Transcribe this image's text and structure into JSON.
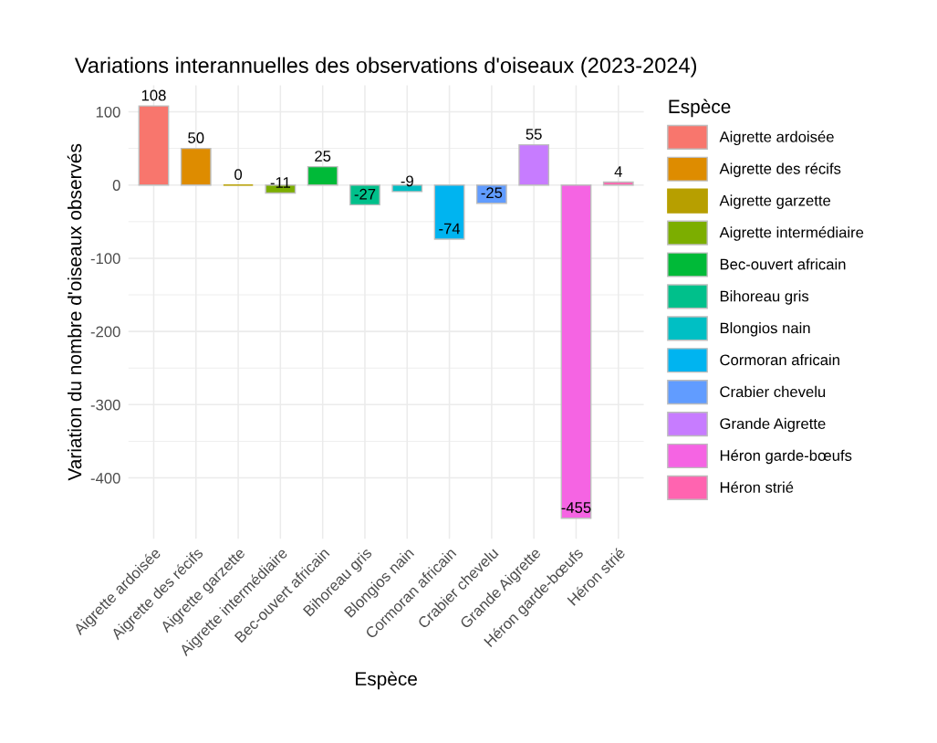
{
  "chart_data": {
    "type": "bar",
    "title": "Variations interannuelles des observations d'oiseaux (2023-2024)",
    "xlabel": "Espèce",
    "ylabel": "Variation du nombre d'oiseaux observés",
    "legend_title": "Espèce",
    "categories": [
      "Aigrette ardoisée",
      "Aigrette des récifs",
      "Aigrette garzette",
      "Aigrette intermédiaire",
      "Bec-ouvert africain",
      "Bihoreau gris",
      "Blongios nain",
      "Cormoran africain",
      "Crabier chevelu",
      "Grande Aigrette",
      "Héron garde-bœufs",
      "Héron strié"
    ],
    "series": [
      {
        "name": "Aigrette ardoisée",
        "color": "#f8766d",
        "values": [
          108,
          null,
          null,
          null,
          null,
          null,
          null,
          null,
          null,
          null,
          null,
          null
        ]
      },
      {
        "name": "Aigrette des récifs",
        "color": "#de8c00",
        "values": [
          null,
          50,
          null,
          null,
          null,
          null,
          null,
          null,
          null,
          null,
          null,
          null
        ]
      },
      {
        "name": "Aigrette garzette",
        "color": "#b79f00",
        "values": [
          null,
          null,
          0,
          null,
          null,
          null,
          null,
          null,
          null,
          null,
          null,
          null
        ]
      },
      {
        "name": "Aigrette intermédiaire",
        "color": "#7cae00",
        "values": [
          null,
          null,
          null,
          -11,
          null,
          null,
          null,
          null,
          null,
          null,
          null,
          null
        ]
      },
      {
        "name": "Bec-ouvert africain",
        "color": "#00ba38",
        "values": [
          null,
          null,
          null,
          null,
          25,
          null,
          null,
          null,
          null,
          null,
          null,
          null
        ]
      },
      {
        "name": "Bihoreau gris",
        "color": "#00c08b",
        "values": [
          null,
          null,
          null,
          null,
          null,
          -27,
          null,
          null,
          null,
          null,
          null,
          null
        ]
      },
      {
        "name": "Blongios nain",
        "color": "#00bfc4",
        "values": [
          null,
          null,
          null,
          null,
          null,
          null,
          -9,
          null,
          null,
          null,
          null,
          null
        ]
      },
      {
        "name": "Cormoran africain",
        "color": "#00b4f0",
        "values": [
          null,
          null,
          null,
          null,
          null,
          null,
          null,
          -74,
          null,
          null,
          null,
          null
        ]
      },
      {
        "name": "Crabier chevelu",
        "color": "#619cff",
        "values": [
          null,
          null,
          null,
          null,
          null,
          null,
          null,
          null,
          -25,
          null,
          null,
          null
        ]
      },
      {
        "name": "Grande Aigrette",
        "color": "#c77cff",
        "values": [
          null,
          null,
          null,
          null,
          null,
          null,
          null,
          null,
          null,
          55,
          null,
          null
        ]
      },
      {
        "name": "Héron garde-bœufs",
        "color": "#f564e3",
        "values": [
          null,
          null,
          null,
          null,
          null,
          null,
          null,
          null,
          null,
          null,
          -455,
          null
        ]
      },
      {
        "name": "Héron strié",
        "color": "#ff64b0",
        "values": [
          null,
          null,
          null,
          null,
          null,
          null,
          null,
          null,
          null,
          null,
          null,
          4
        ]
      }
    ],
    "ylim": [
      -483,
      136
    ],
    "yticks": [
      100,
      0,
      -100,
      -200,
      -300,
      -400
    ],
    "grid": true,
    "legend": "right",
    "data_labels": true
  }
}
